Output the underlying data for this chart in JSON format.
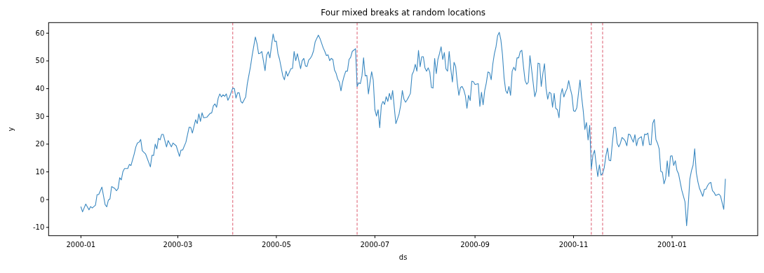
{
  "chart_data": {
    "type": "line",
    "title": "Four mixed breaks at random locations",
    "xlabel": "ds",
    "ylabel": "y",
    "color": "#3a88c0",
    "x": [
      "2000-01-01",
      "2000-01-02",
      "2000-01-04",
      "2000-01-06",
      "2000-01-07",
      "2000-01-08",
      "2000-01-10",
      "2000-01-11",
      "2000-01-12",
      "2000-01-14",
      "2000-01-15",
      "2000-01-16",
      "2000-01-17",
      "2000-01-18",
      "2000-01-19",
      "2000-01-20",
      "2000-01-22",
      "2000-01-23",
      "2000-01-24",
      "2000-01-25",
      "2000-01-26",
      "2000-01-27",
      "2000-01-28",
      "2000-01-30",
      "2000-01-31",
      "2000-02-01",
      "2000-02-03",
      "2000-02-04",
      "2000-02-05",
      "2000-02-06",
      "2000-02-07",
      "2000-02-08",
      "2000-02-10",
      "2000-02-13",
      "2000-02-14",
      "2000-02-15",
      "2000-02-16",
      "2000-02-17",
      "2000-02-18",
      "2000-02-19",
      "2000-02-20",
      "2000-02-21",
      "2000-02-23",
      "2000-02-24",
      "2000-02-26",
      "2000-02-27",
      "2000-02-29",
      "2000-03-02",
      "2000-03-03",
      "2000-03-04",
      "2000-03-06",
      "2000-03-08",
      "2000-03-09",
      "2000-03-10",
      "2000-03-12",
      "2000-03-13",
      "2000-03-14",
      "2000-03-15",
      "2000-03-16",
      "2000-03-17",
      "2000-03-19",
      "2000-03-21",
      "2000-03-22",
      "2000-03-23",
      "2000-03-24",
      "2000-03-25",
      "2000-03-26",
      "2000-03-27",
      "2000-03-28",
      "2000-03-29",
      "2000-03-30",
      "2000-03-31",
      "2000-04-01",
      "2000-04-02",
      "2000-04-04",
      "2000-04-05",
      "2000-04-06",
      "2000-04-07",
      "2000-04-08",
      "2000-04-09",
      "2000-04-10",
      "2000-04-12",
      "2000-04-13",
      "2000-04-15",
      "2000-04-16",
      "2000-04-18",
      "2000-04-19",
      "2000-04-20",
      "2000-04-21",
      "2000-04-22",
      "2000-04-24",
      "2000-04-25",
      "2000-04-26",
      "2000-04-27",
      "2000-04-29",
      "2000-04-30",
      "2000-05-01",
      "2000-05-02",
      "2000-05-03",
      "2000-05-05",
      "2000-05-06",
      "2000-05-07",
      "2000-05-08",
      "2000-05-10",
      "2000-05-11",
      "2000-05-12",
      "2000-05-13",
      "2000-05-14",
      "2000-05-16",
      "2000-05-17",
      "2000-05-18",
      "2000-05-19",
      "2000-05-20",
      "2000-05-21",
      "2000-05-22",
      "2000-05-23",
      "2000-05-24",
      "2000-05-25",
      "2000-05-26",
      "2000-05-27",
      "2000-05-28",
      "2000-05-30",
      "2000-05-31",
      "2000-06-01",
      "2000-06-02",
      "2000-06-03",
      "2000-06-04",
      "2000-06-05",
      "2000-06-06",
      "2000-06-07",
      "2000-06-08",
      "2000-06-09",
      "2000-06-10",
      "2000-06-11",
      "2000-06-12",
      "2000-06-13",
      "2000-06-14",
      "2000-06-15",
      "2000-06-16",
      "2000-06-17",
      "2000-06-19",
      "2000-06-20",
      "2000-06-21",
      "2000-06-22",
      "2000-06-23",
      "2000-06-24",
      "2000-06-25",
      "2000-06-26",
      "2000-06-27",
      "2000-06-28",
      "2000-06-29",
      "2000-06-30",
      "2000-07-01",
      "2000-07-02",
      "2000-07-03",
      "2000-07-04",
      "2000-07-05",
      "2000-07-06",
      "2000-07-07",
      "2000-07-08",
      "2000-07-09",
      "2000-07-10",
      "2000-07-11",
      "2000-07-12",
      "2000-07-13",
      "2000-07-14",
      "2000-07-15",
      "2000-07-16",
      "2000-07-17",
      "2000-07-18",
      "2000-07-19",
      "2000-07-20",
      "2000-07-21",
      "2000-07-22",
      "2000-07-23",
      "2000-07-24",
      "2000-07-25",
      "2000-07-26",
      "2000-07-27",
      "2000-07-28",
      "2000-07-29",
      "2000-07-30",
      "2000-07-31",
      "2000-08-01",
      "2000-08-02",
      "2000-08-03",
      "2000-08-04",
      "2000-08-05",
      "2000-08-06",
      "2000-08-07",
      "2000-08-08",
      "2000-08-09",
      "2000-08-10",
      "2000-08-11",
      "2000-08-12",
      "2000-08-13",
      "2000-08-14",
      "2000-08-15",
      "2000-08-16",
      "2000-08-17",
      "2000-08-18",
      "2000-08-19",
      "2000-08-20",
      "2000-08-21",
      "2000-08-22",
      "2000-08-23",
      "2000-08-24",
      "2000-08-25",
      "2000-08-26",
      "2000-08-27",
      "2000-08-28",
      "2000-08-29",
      "2000-08-30",
      "2000-08-31",
      "2000-09-01",
      "2000-09-03",
      "2000-09-04",
      "2000-09-05",
      "2000-09-06",
      "2000-09-07",
      "2000-09-08",
      "2000-09-09",
      "2000-09-10",
      "2000-09-11",
      "2000-09-12",
      "2000-09-13",
      "2000-09-14",
      "2000-09-15",
      "2000-09-16",
      "2000-09-17",
      "2000-09-18",
      "2000-09-19",
      "2000-09-20",
      "2000-09-21",
      "2000-09-22",
      "2000-09-23",
      "2000-09-24",
      "2000-09-25",
      "2000-09-26",
      "2000-09-27",
      "2000-09-28",
      "2000-09-29",
      "2000-09-30",
      "2000-10-01",
      "2000-10-02",
      "2000-10-03",
      "2000-10-04",
      "2000-10-05",
      "2000-10-06",
      "2000-10-07",
      "2000-10-08",
      "2000-10-09",
      "2000-10-10",
      "2000-10-11",
      "2000-10-12",
      "2000-10-13",
      "2000-10-14",
      "2000-10-15",
      "2000-10-16",
      "2000-10-17",
      "2000-10-18",
      "2000-10-19",
      "2000-10-20",
      "2000-10-21",
      "2000-10-22",
      "2000-10-23",
      "2000-10-24",
      "2000-10-25",
      "2000-10-26",
      "2000-10-27",
      "2000-10-28",
      "2000-10-29",
      "2000-10-30",
      "2000-10-31",
      "2000-11-01",
      "2000-11-02",
      "2000-11-03",
      "2000-11-05",
      "2000-11-06",
      "2000-11-07",
      "2000-11-08",
      "2000-11-09",
      "2000-11-10",
      "2000-11-11",
      "2000-11-12",
      "2000-11-13",
      "2000-11-14",
      "2000-11-15",
      "2000-11-16",
      "2000-11-17",
      "2000-11-18",
      "2000-11-19",
      "2000-11-20",
      "2000-11-21",
      "2000-11-22",
      "2000-11-23",
      "2000-11-24",
      "2000-11-25",
      "2000-11-26",
      "2000-11-27",
      "2000-11-28",
      "2000-11-29",
      "2000-11-30",
      "2000-12-01",
      "2000-12-02",
      "2000-12-03",
      "2000-12-04",
      "2000-12-05",
      "2000-12-06",
      "2000-12-07",
      "2000-12-08",
      "2000-12-09",
      "2000-12-10",
      "2000-12-11",
      "2000-12-13",
      "2000-12-14",
      "2000-12-15",
      "2000-12-16",
      "2000-12-17",
      "2000-12-18",
      "2000-12-19",
      "2000-12-20",
      "2000-12-21",
      "2000-12-22",
      "2000-12-23",
      "2000-12-24",
      "2000-12-25",
      "2000-12-26",
      "2000-12-27",
      "2000-12-28",
      "2000-12-29",
      "2000-12-30",
      "2000-12-31",
      "2001-01-01",
      "2001-01-02",
      "2001-01-03",
      "2001-01-04",
      "2001-01-05",
      "2001-01-06",
      "2001-01-07",
      "2001-01-09",
      "2001-01-10",
      "2001-01-11",
      "2001-01-12",
      "2001-01-13",
      "2001-01-14",
      "2001-01-15",
      "2001-01-16",
      "2001-01-17",
      "2001-01-18",
      "2001-01-20",
      "2001-01-21",
      "2001-01-22",
      "2001-01-23",
      "2001-01-24",
      "2001-01-25",
      "2001-01-26",
      "2001-01-27",
      "2001-01-28",
      "2001-01-30",
      "2001-01-31",
      "2001-02-02",
      "2001-02-03"
    ],
    "values": [
      -2.6,
      -4.4,
      -1.6,
      -3.7,
      -2.5,
      -3,
      -2,
      1.8,
      1.8,
      4.5,
      1.3,
      -1.8,
      -2.6,
      -0.2,
      0.3,
      4.7,
      4,
      3.2,
      4,
      7.9,
      7.1,
      10.1,
      11.2,
      11.2,
      12.7,
      12.3,
      16.5,
      19,
      20.4,
      20.7,
      21.7,
      17.6,
      16.5,
      11.8,
      16,
      15.9,
      20,
      18.3,
      22.1,
      21.5,
      23.5,
      23.5,
      19,
      21.3,
      19,
      20.4,
      19.4,
      15.6,
      17.9,
      17.9,
      20.7,
      26.1,
      26,
      24,
      28.8,
      27.4,
      30.9,
      28.2,
      31.3,
      29.5,
      29.7,
      31.1,
      31.3,
      33.8,
      34.5,
      33.3,
      36.6,
      38.1,
      37,
      37.8,
      37.2,
      38.1,
      35.8,
      37,
      40.2,
      40,
      36.6,
      38.5,
      38.5,
      35.4,
      34.8,
      37,
      41.7,
      48,
      51.9,
      58.6,
      56.3,
      52.6,
      52.8,
      53.4,
      46.5,
      52.1,
      53.3,
      51.1,
      59.7,
      57,
      57.1,
      52.6,
      50.5,
      44.6,
      43.2,
      46.3,
      44.5,
      47.2,
      47.3,
      53.4,
      50.1,
      52.6,
      47.2,
      50.1,
      50.9,
      48.2,
      48,
      50.3,
      50.9,
      51.9,
      53.6,
      56.8,
      58.1,
      59.3,
      58.1,
      54.7,
      53.4,
      51.9,
      52.2,
      50.1,
      50.9,
      50.5,
      46.7,
      45.5,
      43.4,
      42.4,
      39.2,
      42.4,
      44.6,
      46.3,
      46.3,
      50.5,
      51.3,
      53.4,
      54.4,
      40.8,
      42.1,
      41.8,
      44.6,
      51.1,
      44.6,
      44.8,
      38.1,
      42.4,
      46.1,
      43,
      32.4,
      30.1,
      32.4,
      25.9,
      34,
      35.4,
      34.3,
      37.1,
      35.4,
      38.3,
      36,
      39.3,
      33.3,
      27.4,
      29.1,
      30.9,
      34.1,
      39.3,
      36.2,
      35.1,
      36,
      37.1,
      38.3,
      45,
      46.3,
      48.8,
      46.3,
      53.8,
      47.9,
      51.5,
      51.5,
      47.5,
      46.3,
      47.5,
      46,
      40.4,
      40.2,
      50.9,
      45.4,
      50.5,
      52.6,
      55.1,
      50.5,
      53,
      47.1,
      46.3,
      53.4,
      47.1,
      42.4,
      49.5,
      48,
      42.1,
      37.6,
      40.4,
      40.8,
      39.6,
      37.5,
      32.9,
      37.6,
      35.7,
      42.7,
      42.5,
      41.5,
      41.8,
      33.6,
      38.7,
      34.2,
      39.3,
      42.1,
      46,
      45.7,
      43.2,
      48.8,
      52.6,
      55.1,
      59.1,
      60.3,
      57.6,
      52.2,
      43.8,
      39.3,
      38.3,
      40.8,
      37.6,
      46.3,
      47.7,
      46.5,
      51.1,
      51.1,
      53.4,
      53.8,
      47.9,
      42.9,
      41.6,
      42.3,
      51.9,
      47.1,
      42.1,
      37.1,
      39.2,
      49.2,
      49,
      40.8,
      45.4,
      49,
      40,
      36.2,
      38.7,
      38.3,
      33.3,
      38.3,
      32.9,
      32.4,
      29.5,
      37.6,
      40,
      37,
      38.7,
      40,
      42.9,
      40,
      37.6,
      32,
      31.8,
      33.1,
      43.1,
      37,
      32,
      25.3,
      27.8,
      21.5,
      26.8,
      11.1,
      16.1,
      17.8,
      12.8,
      8.3,
      12.5,
      8.8,
      9.4,
      11.5,
      15.7,
      18.6,
      14.2,
      14,
      20.3,
      25.9,
      26.1,
      20.3,
      19,
      20.3,
      22.4,
      21.9,
      21.1,
      19.4,
      23.6,
      23.4,
      22,
      20.7,
      23.4,
      19.4,
      21.9,
      22.7,
      19.4,
      23.6,
      23.4,
      24,
      19.8,
      19.8,
      27.5,
      28.9,
      21.7,
      20.3,
      18.3,
      10.2,
      9.9,
      5.7,
      7.6,
      14,
      8.3,
      15.7,
      15.8,
      12.3,
      14,
      10.6,
      9.3,
      6.4,
      3.4,
      -0.8,
      -9.4,
      -2,
      7.4,
      10.4,
      12.4,
      18.3,
      9.7,
      6.4,
      4,
      1.2,
      3.7,
      3.8,
      5.1,
      5.9,
      6.2,
      3.2,
      2.6,
      1.5,
      2,
      1.3,
      -3.5,
      7.4
    ],
    "xlim": [
      "1999-12-12",
      "2001-02-23"
    ],
    "ylim": [
      -13,
      63.8
    ],
    "xticks": [
      "2000-01",
      "2000-03",
      "2000-05",
      "2000-07",
      "2000-09",
      "2000-11",
      "2001-01"
    ],
    "yticks": [
      -10,
      0,
      10,
      20,
      30,
      40,
      50,
      60
    ],
    "ref_lines": [
      {
        "axis": "x",
        "value": "2000-04-04",
        "color": "#dc5a6e",
        "line_style": "dashed"
      },
      {
        "axis": "x",
        "value": "2000-06-20",
        "color": "#dc5a6e",
        "line_style": "dashed"
      },
      {
        "axis": "x",
        "value": "2000-11-12",
        "color": "#dc5a6e",
        "line_style": "dashed"
      },
      {
        "axis": "x",
        "value": "2000-11-19",
        "color": "#dc5a6e",
        "line_style": "dashed"
      }
    ]
  }
}
